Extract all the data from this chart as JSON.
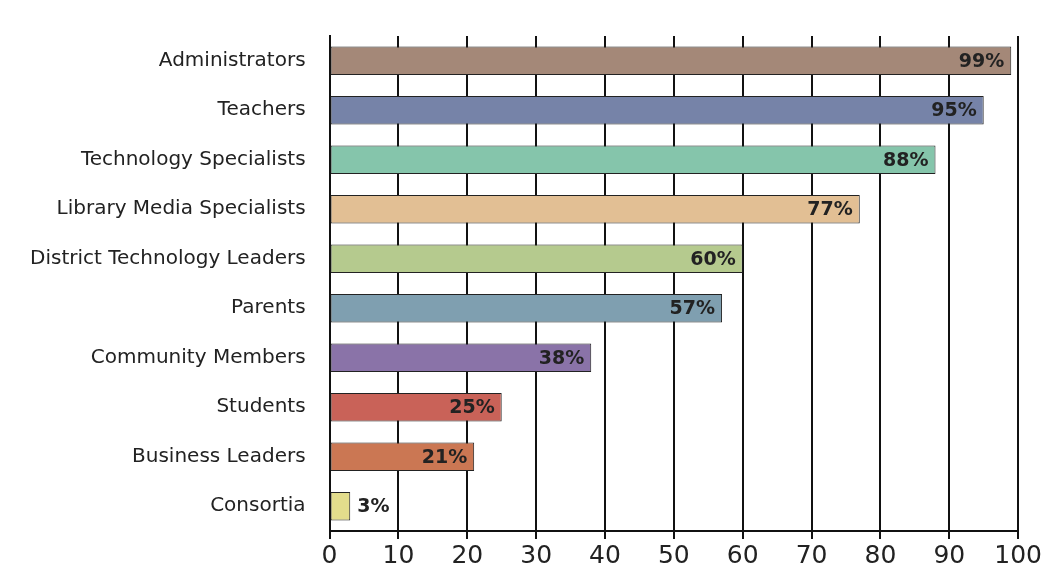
{
  "chart_data": {
    "type": "bar",
    "orientation": "horizontal",
    "categories": [
      "Administrators",
      "Teachers",
      "Technology Specialists",
      "Library Media Specialists",
      "District Technology Leaders",
      "Parents",
      "Community Members",
      "Students",
      "Business Leaders",
      "Consortia"
    ],
    "values": [
      99,
      95,
      88,
      77,
      60,
      57,
      38,
      25,
      21,
      3
    ],
    "colors": [
      "#a48878",
      "#7683a8",
      "#85c5ab",
      "#e2bf94",
      "#b5ca8e",
      "#7f9fb0",
      "#8a73a8",
      "#c96258",
      "#cb7753",
      "#e3dd8c"
    ],
    "value_labels": [
      "99%",
      "95%",
      "88%",
      "77%",
      "60%",
      "57%",
      "38%",
      "25%",
      "21%",
      "3%"
    ],
    "xlim": [
      0,
      100
    ],
    "xticks": [
      0,
      10,
      20,
      30,
      40,
      50,
      60,
      70,
      80,
      90,
      100
    ],
    "grid": "x",
    "legend": false
  }
}
